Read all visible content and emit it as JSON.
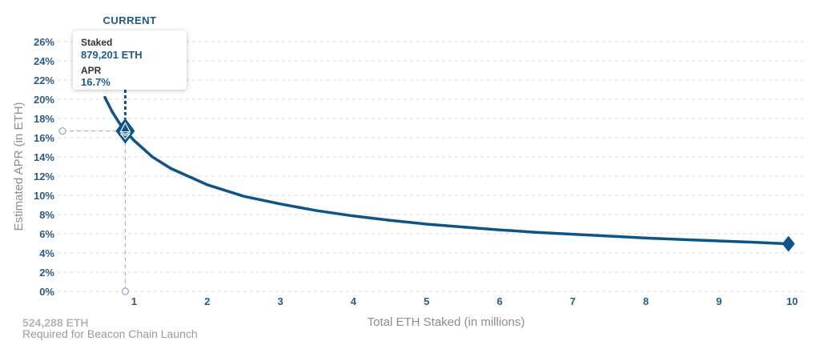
{
  "chart_data": {
    "type": "line",
    "xlabel": "Total ETH Staked  (in millions)",
    "ylabel": "Estimated APR (in ETH)",
    "x_ticks": [
      1,
      2,
      3,
      4,
      5,
      6,
      7,
      8,
      9,
      10
    ],
    "y_ticks": [
      "0%",
      "2%",
      "4%",
      "6%",
      "8%",
      "10%",
      "12%",
      "14%",
      "16%",
      "18%",
      "20%",
      "22%",
      "24%",
      "26%"
    ],
    "xlim": [
      0.6,
      10.2
    ],
    "ylim": [
      0,
      26
    ],
    "grid": true,
    "series": [
      {
        "x": [
          0.6,
          0.7,
          0.8,
          0.879,
          1,
          1.25,
          1.5,
          2,
          2.5,
          3,
          3.5,
          4,
          4.5,
          5,
          5.5,
          6,
          6.5,
          7,
          7.5,
          8,
          8.5,
          9,
          9.5,
          9.95
        ],
        "y": [
          20.2,
          18.7,
          17.5,
          16.7,
          15.7,
          14.0,
          12.8,
          11.1,
          9.9,
          9.1,
          8.4,
          7.85,
          7.4,
          7.0,
          6.7,
          6.4,
          6.15,
          5.95,
          5.75,
          5.55,
          5.4,
          5.25,
          5.1,
          4.95
        ]
      }
    ],
    "current_marker": {
      "label": "CURRENT",
      "x": 0.879,
      "y": 16.7,
      "staked_label": "Staked",
      "staked_value": "879,201 ETH",
      "apr_label": "APR",
      "apr_value": "16.7%"
    },
    "end_marker": {
      "x": 9.95,
      "y": 4.95
    },
    "footnote": {
      "value": "524,288 ETH",
      "caption": "Required for Beacon Chain Launch"
    }
  },
  "colors": {
    "line": "#0f5488",
    "tick": "#2a5a85",
    "grid": "#d8d8d8",
    "guide": "#9fb6cc"
  }
}
